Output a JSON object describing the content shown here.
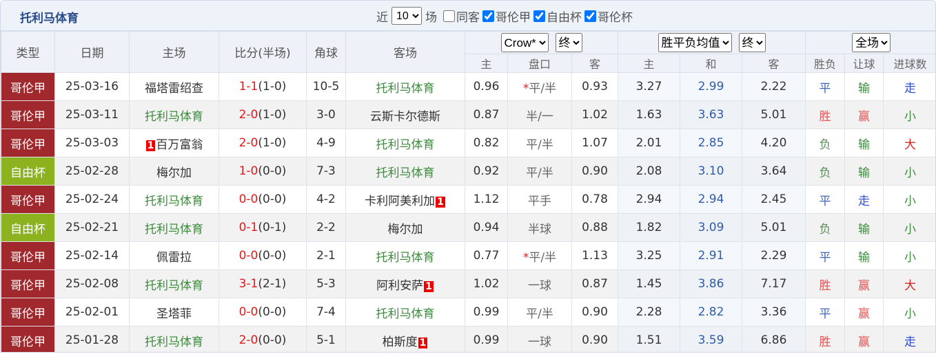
{
  "header": {
    "title": "托利马体育",
    "recent_label": "近",
    "recent_count": "10",
    "recent_unit": "场",
    "filters": [
      {
        "label": "同客",
        "checked": false
      },
      {
        "label": "哥伦甲",
        "checked": true
      },
      {
        "label": "自由杯",
        "checked": true
      },
      {
        "label": "哥伦杯",
        "checked": true
      }
    ]
  },
  "table": {
    "columns": [
      "类型",
      "日期",
      "主场",
      "比分(半场)",
      "角球",
      "客场"
    ],
    "selects": [
      "Crow*",
      "终",
      "胜平负均值",
      "终",
      "全场"
    ],
    "subcolumns": [
      "主",
      "盘口",
      "客",
      "主",
      "和",
      "客",
      "胜负",
      "让球",
      "进球数"
    ],
    "rows": [
      {
        "type": "哥伦甲",
        "type_color": "#a1292e",
        "date": "25-03-16",
        "home": {
          "name": "福塔雷绍查",
          "color": "#333333"
        },
        "score": "1-1",
        "half": "(1-0)",
        "corner": "10-5",
        "away": {
          "name": "托利马体育",
          "color": "#3a8c3a"
        },
        "odds_home": "0.96",
        "handicap": {
          "mark": "*",
          "text": "平/半"
        },
        "odds_away": "0.93",
        "avg_home": "3.27",
        "avg_draw": "2.99",
        "avg_away": "2.22",
        "result": {
          "text": "平",
          "color": "#3f63b5"
        },
        "hcap_result": {
          "text": "输",
          "color": "#3a8c3a"
        },
        "goals": {
          "text": "走",
          "color": "#2f4fd0"
        }
      },
      {
        "type": "哥伦甲",
        "type_color": "#a1292e",
        "date": "25-03-11",
        "home": {
          "name": "托利马体育",
          "color": "#3a8c3a"
        },
        "score": "2-0",
        "half": "(1-0)",
        "corner": "3-0",
        "away": {
          "name": "云斯卡尔德斯",
          "color": "#333333"
        },
        "odds_home": "0.87",
        "handicap": {
          "text": "半/一"
        },
        "odds_away": "1.02",
        "avg_home": "1.63",
        "avg_draw": "3.63",
        "avg_away": "5.01",
        "result": {
          "text": "胜",
          "color": "#e35555"
        },
        "hcap_result": {
          "text": "赢",
          "color": "#e35555"
        },
        "goals": {
          "text": "小",
          "color": "#3a8c3a"
        }
      },
      {
        "type": "哥伦甲",
        "type_color": "#a1292e",
        "date": "25-03-03",
        "home": {
          "name": "百万富翁",
          "red_card": "1",
          "color": "#333333"
        },
        "score": "2-0",
        "half": "(1-0)",
        "corner": "4-9",
        "away": {
          "name": "托利马体育",
          "color": "#3a8c3a"
        },
        "odds_home": "0.82",
        "handicap": {
          "text": "平/半"
        },
        "odds_away": "1.07",
        "avg_home": "2.01",
        "avg_draw": "2.85",
        "avg_away": "4.20",
        "result": {
          "text": "负",
          "color": "#5a8a5a"
        },
        "hcap_result": {
          "text": "输",
          "color": "#3a8c3a"
        },
        "goals": {
          "text": "大",
          "color": "#e02020"
        }
      },
      {
        "type": "自由杯",
        "type_color": "#8cb31f",
        "date": "25-02-28",
        "home": {
          "name": "梅尔加",
          "color": "#333333"
        },
        "score": "1-0",
        "half": "(0-0)",
        "corner": "7-3",
        "away": {
          "name": "托利马体育",
          "color": "#3a8c3a"
        },
        "odds_home": "0.92",
        "handicap": {
          "text": "平/半"
        },
        "odds_away": "0.90",
        "avg_home": "2.08",
        "avg_draw": "3.10",
        "avg_away": "3.64",
        "result": {
          "text": "负",
          "color": "#5a8a5a"
        },
        "hcap_result": {
          "text": "输",
          "color": "#3a8c3a"
        },
        "goals": {
          "text": "小",
          "color": "#3a8c3a"
        }
      },
      {
        "type": "哥伦甲",
        "type_color": "#a1292e",
        "date": "25-02-24",
        "home": {
          "name": "托利马体育",
          "color": "#3a8c3a"
        },
        "score": "0-0",
        "half": "(0-0)",
        "corner": "4-2",
        "away": {
          "name": "卡利阿美利加",
          "red_card": "1",
          "color": "#333333"
        },
        "odds_home": "1.12",
        "handicap": {
          "text": "平手"
        },
        "odds_away": "0.78",
        "avg_home": "2.94",
        "avg_draw": "2.94",
        "avg_away": "2.45",
        "result": {
          "text": "平",
          "color": "#3f63b5"
        },
        "hcap_result": {
          "text": "走",
          "color": "#2f4fd0"
        },
        "goals": {
          "text": "小",
          "color": "#3a8c3a"
        }
      },
      {
        "type": "自由杯",
        "type_color": "#8cb31f",
        "date": "25-02-21",
        "home": {
          "name": "托利马体育",
          "color": "#3a8c3a"
        },
        "score": "0-1",
        "half": "(0-1)",
        "corner": "2-2",
        "away": {
          "name": "梅尔加",
          "color": "#333333"
        },
        "odds_home": "0.94",
        "handicap": {
          "text": "半球"
        },
        "odds_away": "0.88",
        "avg_home": "1.82",
        "avg_draw": "3.09",
        "avg_away": "5.01",
        "result": {
          "text": "负",
          "color": "#5a8a5a"
        },
        "hcap_result": {
          "text": "输",
          "color": "#3a8c3a"
        },
        "goals": {
          "text": "小",
          "color": "#3a8c3a"
        }
      },
      {
        "type": "哥伦甲",
        "type_color": "#a1292e",
        "date": "25-02-14",
        "home": {
          "name": "佩雷拉",
          "color": "#333333"
        },
        "score": "0-0",
        "half": "(0-0)",
        "corner": "2-1",
        "away": {
          "name": "托利马体育",
          "color": "#3a8c3a"
        },
        "odds_home": "0.77",
        "handicap": {
          "mark": "*",
          "text": "平/半"
        },
        "odds_away": "1.13",
        "avg_home": "3.25",
        "avg_draw": "2.91",
        "avg_away": "2.29",
        "result": {
          "text": "平",
          "color": "#3f63b5"
        },
        "hcap_result": {
          "text": "输",
          "color": "#3a8c3a"
        },
        "goals": {
          "text": "小",
          "color": "#3a8c3a"
        }
      },
      {
        "type": "哥伦甲",
        "type_color": "#a1292e",
        "date": "25-02-08",
        "home": {
          "name": "托利马体育",
          "color": "#3a8c3a"
        },
        "score": "3-1",
        "half": "(2-1)",
        "corner": "5-3",
        "away": {
          "name": "阿利安萨",
          "red_card": "1",
          "color": "#333333"
        },
        "odds_home": "1.02",
        "handicap": {
          "text": "一球"
        },
        "odds_away": "0.87",
        "avg_home": "1.45",
        "avg_draw": "3.86",
        "avg_away": "7.17",
        "result": {
          "text": "胜",
          "color": "#e35555"
        },
        "hcap_result": {
          "text": "赢",
          "color": "#e35555"
        },
        "goals": {
          "text": "大",
          "color": "#e02020"
        }
      },
      {
        "type": "哥伦甲",
        "type_color": "#a1292e",
        "date": "25-02-01",
        "home": {
          "name": "圣塔菲",
          "color": "#333333"
        },
        "score": "0-0",
        "half": "(0-0)",
        "corner": "7-4",
        "away": {
          "name": "托利马体育",
          "color": "#3a8c3a"
        },
        "odds_home": "0.99",
        "handicap": {
          "text": "平/半"
        },
        "odds_away": "0.90",
        "avg_home": "2.28",
        "avg_draw": "2.82",
        "avg_away": "3.36",
        "result": {
          "text": "平",
          "color": "#3f63b5"
        },
        "hcap_result": {
          "text": "赢",
          "color": "#e35555"
        },
        "goals": {
          "text": "小",
          "color": "#3a8c3a"
        }
      },
      {
        "type": "哥伦甲",
        "type_color": "#a1292e",
        "date": "25-01-28",
        "home": {
          "name": "托利马体育",
          "color": "#3a8c3a"
        },
        "score": "2-0",
        "half": "(0-0)",
        "corner": "5-1",
        "away": {
          "name": "柏斯度",
          "red_card": "1",
          "color": "#333333"
        },
        "odds_home": "0.99",
        "handicap": {
          "text": "一球"
        },
        "odds_away": "0.90",
        "avg_home": "1.51",
        "avg_draw": "3.59",
        "avg_away": "6.86",
        "result": {
          "text": "胜",
          "color": "#e35555"
        },
        "hcap_result": {
          "text": "赢",
          "color": "#e35555"
        },
        "goals": {
          "text": "走",
          "color": "#2f4fd0"
        }
      }
    ]
  }
}
